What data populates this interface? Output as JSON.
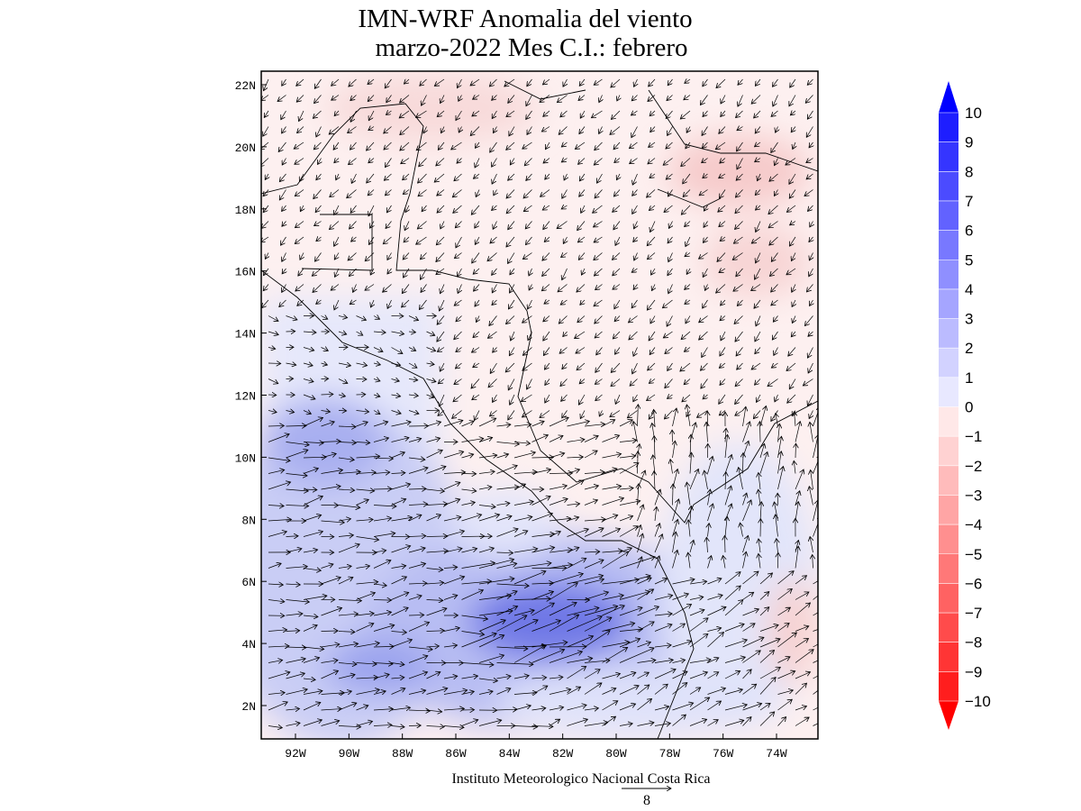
{
  "title": [
    "IMN-WRF Anomalia del viento",
    "marzo-2022 Mes C.I.: febrero"
  ],
  "lat_ticks": [
    "22N",
    "20N",
    "18N",
    "16N",
    "14N",
    "12N",
    "10N",
    "8N",
    "6N",
    "4N",
    "2N"
  ],
  "lon_ticks": [
    "92W",
    "90W",
    "88W",
    "86W",
    "84W",
    "82W",
    "80W",
    "78W",
    "76W",
    "74W"
  ],
  "colorbar": [
    "10",
    "9",
    "8",
    "7",
    "6",
    "5",
    "4",
    "3",
    "2",
    "1",
    "0",
    "−1",
    "−2",
    "−3",
    "−4",
    "−5",
    "−6",
    "−7",
    "−8",
    "−9",
    "−10"
  ],
  "footer": "Instituto Meteorologico Nacional Costa Rica",
  "reference_vector": "8"
}
